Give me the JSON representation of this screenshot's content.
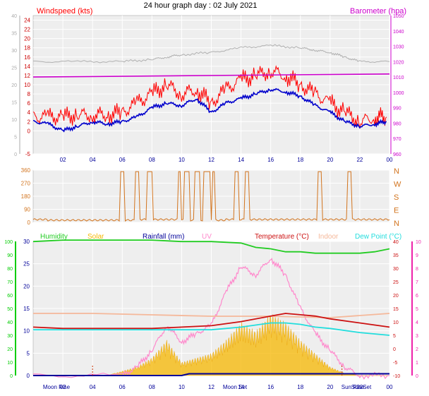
{
  "title": "24 hour graph day : 02 July 2021",
  "x_ticks": [
    "02",
    "04",
    "06",
    "08",
    "10",
    "12",
    "14",
    "16",
    "18",
    "20",
    "22",
    "00"
  ],
  "colors": {
    "wind_avg": "#0000cc",
    "wind_gust": "#ff0000",
    "barometer": "#cc00cc",
    "barometer_grey": "#b0b0b0",
    "wind_dir": "#d2741e",
    "humidity": "#22cc22",
    "solar": "#f5b700",
    "rainfall": "#000099",
    "uv": "#ff88cc",
    "temperature": "#cc1111",
    "indoor": "#f5b89a",
    "dewpoint": "#22dddd",
    "left_axis_green": "#00cc00",
    "right_axis_pink": "#ee22aa",
    "panel_bg": "#eeeeee"
  },
  "chart_data": [
    {
      "type": "line",
      "title": "",
      "legend": [
        "Windspeed (kts)",
        "Barometer (hpa)"
      ],
      "x_range": [
        0,
        24
      ],
      "left_axis": {
        "ticks": [
          -5,
          0,
          2,
          4,
          6,
          8,
          10,
          12,
          14,
          16,
          18,
          20,
          22,
          24
        ],
        "grey_ticks": [
          0,
          5,
          10,
          15,
          20,
          25,
          30,
          35,
          40
        ],
        "ylim": [
          -5,
          25
        ]
      },
      "right_axis": {
        "ticks": [
          960,
          970,
          980,
          990,
          1000,
          1010,
          1020,
          1030,
          1040,
          1050
        ],
        "ylim": [
          960,
          1050
        ]
      },
      "series": [
        {
          "name": "Windspeed (kts)",
          "role": "average",
          "x": [
            0,
            1,
            2,
            3,
            4,
            5,
            6,
            7,
            8,
            9,
            10,
            11,
            12,
            13,
            14,
            15,
            16,
            17,
            18,
            19,
            20,
            21,
            22,
            23,
            23.8
          ],
          "values": [
            2,
            1.5,
            0,
            1,
            2,
            1.5,
            2,
            3,
            5,
            6,
            5.5,
            7,
            4,
            6,
            7,
            8,
            9,
            8.5,
            7.5,
            5.5,
            4,
            2,
            1,
            1.5,
            2
          ]
        },
        {
          "name": "Windspeed (kts)",
          "role": "gust",
          "x": [
            0,
            1,
            2,
            3,
            4,
            5,
            6,
            7,
            8,
            9,
            10,
            11,
            12,
            13,
            14,
            15,
            16,
            17,
            18,
            19,
            20,
            21,
            22,
            23,
            23.8
          ],
          "values": [
            3,
            3,
            3,
            3.5,
            3.5,
            3.5,
            4,
            6,
            8,
            10,
            8,
            9,
            6,
            9,
            11,
            12,
            13,
            12,
            10,
            8,
            6,
            4,
            2,
            3,
            3
          ]
        },
        {
          "name": "Barometer (hpa)",
          "role": "pressure",
          "x": [
            0,
            24
          ],
          "values": [
            1010,
            1012
          ]
        }
      ]
    },
    {
      "type": "line",
      "title": "",
      "legend": [
        "N",
        "W",
        "S",
        "E",
        "N"
      ],
      "x_range": [
        0,
        24
      ],
      "left_axis": {
        "ticks": [
          0,
          90,
          180,
          270,
          360
        ],
        "ylim": [
          0,
          360
        ]
      },
      "series": [
        {
          "name": "",
          "role": "wind_direction",
          "x": [
            0,
            1,
            2,
            3,
            4,
            5,
            6,
            7,
            8,
            9,
            10,
            11,
            12,
            13,
            14,
            15,
            16,
            17,
            18,
            19,
            20,
            21,
            22,
            23,
            24
          ],
          "values": [
            20,
            15,
            15,
            15,
            15,
            15,
            15,
            20,
            20,
            20,
            15,
            15,
            15,
            20,
            20,
            20,
            20,
            20,
            20,
            20,
            20,
            20,
            20,
            20,
            20
          ]
        }
      ]
    },
    {
      "type": "area",
      "title": "",
      "legend": [
        "Humidity",
        "Solar",
        "Rainfall (mm)",
        "UV",
        "Temperature (°C)",
        "Indoor",
        "Dew Point (°C)"
      ],
      "x_range": [
        0,
        24
      ],
      "x_bottom_labels": [
        "Moon Rise",
        "Sun Set",
        "Moon Set",
        "Sun Rise"
      ],
      "left_axis_outer": {
        "ticks": [
          0,
          10,
          20,
          30,
          40,
          50,
          60,
          70,
          80,
          90,
          100
        ]
      },
      "left_axis_inner": {
        "ticks": [
          0,
          5,
          10,
          15,
          20,
          25,
          30
        ]
      },
      "right_axis_inner": {
        "ticks": [
          -10,
          -5,
          0,
          5,
          10,
          15,
          20,
          25,
          30,
          35,
          40
        ]
      },
      "right_axis_outer": {
        "ticks": [
          0,
          1,
          2,
          3,
          4,
          5,
          6,
          7,
          8,
          9,
          10
        ]
      },
      "series": [
        {
          "name": "Humidity",
          "x": [
            0,
            2,
            4,
            6,
            8,
            10,
            12,
            14,
            15,
            16,
            17,
            18,
            19,
            20,
            21,
            22,
            23,
            24
          ],
          "values": [
            96,
            97,
            97,
            97,
            97,
            96,
            96,
            95,
            92,
            91,
            89,
            89,
            88,
            88,
            88,
            88,
            89,
            91
          ]
        },
        {
          "name": "Temperature (°C)",
          "x": [
            0,
            2,
            4,
            6,
            8,
            10,
            12,
            14,
            16,
            17,
            18,
            19,
            20,
            22,
            24
          ],
          "values": [
            18,
            17.5,
            17.5,
            17.5,
            17.5,
            18,
            18.5,
            20,
            22,
            23,
            22.5,
            22,
            21,
            19.5,
            18
          ]
        },
        {
          "name": "Dew Point (°C)",
          "x": [
            0,
            2,
            4,
            6,
            8,
            10,
            12,
            14,
            16,
            17,
            18,
            19,
            20,
            22,
            24
          ],
          "values": [
            17,
            17,
            17,
            17,
            17,
            17,
            17,
            18,
            19.5,
            19.5,
            19,
            18,
            17.5,
            16,
            15
          ]
        },
        {
          "name": "Indoor",
          "x": [
            0,
            4,
            8,
            12,
            16,
            20,
            24
          ],
          "values": [
            24,
            24,
            23.5,
            23,
            23,
            22.5,
            24
          ]
        },
        {
          "name": "Solar",
          "x": [
            0,
            5,
            6,
            7,
            8,
            9,
            10,
            11,
            12,
            13,
            14,
            15,
            16,
            17,
            18,
            19,
            20,
            21,
            22,
            24
          ],
          "values": [
            0,
            0,
            1,
            2,
            4,
            8,
            3,
            4,
            5,
            8,
            12,
            10,
            14,
            12,
            8,
            5,
            2,
            0.5,
            0,
            0
          ]
        },
        {
          "name": "UV",
          "x": [
            0,
            6,
            7,
            8,
            9,
            10,
            11,
            12,
            13,
            14,
            15,
            16,
            17,
            18,
            19,
            20,
            21,
            22,
            24
          ],
          "values": [
            0,
            0,
            1,
            3,
            6,
            4,
            5,
            6,
            10,
            13,
            12,
            14,
            12,
            8,
            5,
            3,
            1,
            0,
            0
          ]
        },
        {
          "name": "Rainfall (mm)",
          "x": [
            0,
            10,
            10.5,
            24
          ],
          "values": [
            0,
            0,
            0.4,
            0.4
          ]
        }
      ]
    }
  ]
}
